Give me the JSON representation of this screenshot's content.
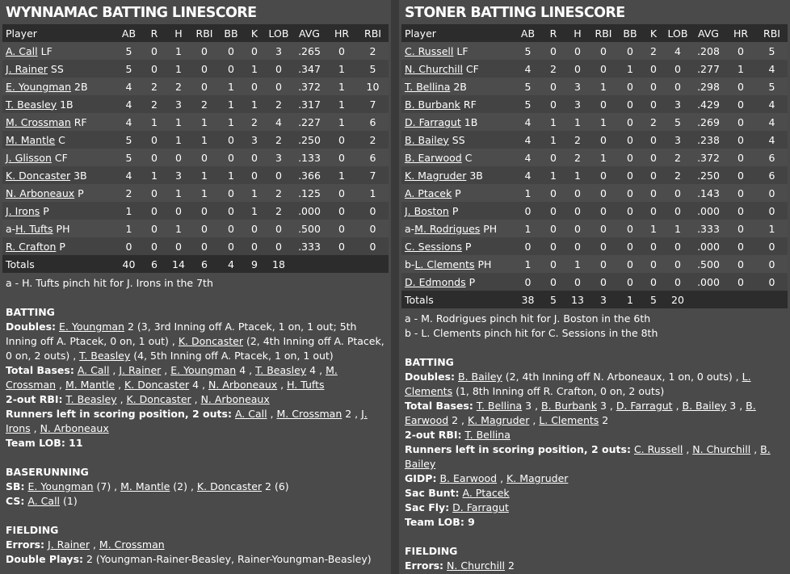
{
  "left": {
    "title": "WYNNAMAC BATTING LINESCORE",
    "columns": [
      "Player",
      "AB",
      "R",
      "H",
      "RBI",
      "BB",
      "K",
      "LOB",
      "AVG",
      "HR",
      "RBI"
    ],
    "rows": [
      {
        "name": "A. Call",
        "pos": "LF",
        "sub": false,
        "stats": [
          "5",
          "0",
          "1",
          "0",
          "0",
          "0",
          "3",
          ".265",
          "0",
          "2"
        ]
      },
      {
        "name": "J. Rainer",
        "pos": "SS",
        "sub": false,
        "stats": [
          "5",
          "0",
          "1",
          "0",
          "0",
          "1",
          "0",
          ".347",
          "1",
          "5"
        ]
      },
      {
        "name": "E. Youngman",
        "pos": "2B",
        "sub": false,
        "stats": [
          "4",
          "2",
          "2",
          "0",
          "1",
          "0",
          "0",
          ".372",
          "1",
          "10"
        ]
      },
      {
        "name": "T. Beasley",
        "pos": "1B",
        "sub": false,
        "stats": [
          "4",
          "2",
          "3",
          "2",
          "1",
          "1",
          "2",
          ".317",
          "1",
          "7"
        ]
      },
      {
        "name": "M. Crossman",
        "pos": "RF",
        "sub": false,
        "stats": [
          "4",
          "1",
          "1",
          "1",
          "1",
          "2",
          "4",
          ".227",
          "1",
          "6"
        ]
      },
      {
        "name": "M. Mantle",
        "pos": "C",
        "sub": false,
        "stats": [
          "5",
          "0",
          "1",
          "1",
          "0",
          "3",
          "2",
          ".250",
          "0",
          "2"
        ]
      },
      {
        "name": "J. Glisson",
        "pos": "CF",
        "sub": false,
        "stats": [
          "5",
          "0",
          "0",
          "0",
          "0",
          "0",
          "3",
          ".133",
          "0",
          "6"
        ]
      },
      {
        "name": "K. Doncaster",
        "pos": "3B",
        "sub": false,
        "stats": [
          "4",
          "1",
          "3",
          "1",
          "1",
          "0",
          "0",
          ".366",
          "1",
          "7"
        ]
      },
      {
        "name": "N. Arboneaux",
        "pos": "P",
        "sub": false,
        "stats": [
          "2",
          "0",
          "1",
          "1",
          "0",
          "1",
          "2",
          ".125",
          "0",
          "1"
        ]
      },
      {
        "name": "J. Irons",
        "pos": "P",
        "sub": true,
        "prefix": "",
        "stats": [
          "1",
          "0",
          "0",
          "0",
          "0",
          "1",
          "2",
          ".000",
          "0",
          "0"
        ]
      },
      {
        "name": "H. Tufts",
        "pos": "PH",
        "sub": true,
        "prefix": "a-",
        "stats": [
          "1",
          "0",
          "1",
          "0",
          "0",
          "0",
          "0",
          ".500",
          "0",
          "0"
        ]
      },
      {
        "name": "R. Crafton",
        "pos": "P",
        "sub": true,
        "prefix": "",
        "stats": [
          "0",
          "0",
          "0",
          "0",
          "0",
          "0",
          "0",
          ".333",
          "0",
          "0"
        ]
      }
    ],
    "totals": {
      "label": "Totals",
      "stats": [
        "40",
        "6",
        "14",
        "6",
        "4",
        "9",
        "18",
        "",
        "",
        ""
      ]
    },
    "footnotes": [
      "a - H. Tufts pinch hit for J. Irons in the 7th"
    ],
    "batting_title": "BATTING",
    "doubles_label": "Doubles:",
    "doubles": [
      {
        "p": "E. Youngman",
        "t": " 2 (3, 3rd Inning off A. Ptacek, 1 on, 1 out; 5th Inning off A. Ptacek, 0 on, 1 out) , "
      },
      {
        "p": "K. Doncaster",
        "t": " (2, 4th Inning off A. Ptacek, 0 on, 2 outs) , "
      },
      {
        "p": "T. Beasley",
        "t": " (4, 5th Inning off A. Ptacek, 1 on, 1 out)"
      }
    ],
    "total_bases_label": "Total Bases:",
    "total_bases": [
      {
        "p": "A. Call",
        "t": " , "
      },
      {
        "p": "J. Rainer",
        "t": " , "
      },
      {
        "p": "E. Youngman",
        "t": " 4 , "
      },
      {
        "p": "T. Beasley",
        "t": " 4 , "
      },
      {
        "p": "M. Crossman",
        "t": " , "
      },
      {
        "p": "M. Mantle",
        "t": " , "
      },
      {
        "p": "K. Doncaster",
        "t": " 4 , "
      },
      {
        "p": "N. Arboneaux",
        "t": " , "
      },
      {
        "p": "H. Tufts",
        "t": ""
      }
    ],
    "two_out_rbi_label": "2-out RBI:",
    "two_out_rbi": [
      {
        "p": "T. Beasley",
        "t": " , "
      },
      {
        "p": "K. Doncaster",
        "t": " , "
      },
      {
        "p": "N. Arboneaux",
        "t": ""
      }
    ],
    "risp_label": "Runners left in scoring position, 2 outs:",
    "risp": [
      {
        "p": "A. Call",
        "t": " , "
      },
      {
        "p": "M. Crossman",
        "t": " 2 , "
      },
      {
        "p": "J. Irons",
        "t": " , "
      },
      {
        "p": "N. Arboneaux",
        "t": ""
      }
    ],
    "team_lob": "Team LOB: 11",
    "baserunning_title": "BASERUNNING",
    "sb_label": "SB:",
    "sb": [
      {
        "p": "E. Youngman",
        "t": " (7) , "
      },
      {
        "p": "M. Mantle",
        "t": " (2) , "
      },
      {
        "p": "K. Doncaster",
        "t": " 2 (6)"
      }
    ],
    "cs_label": "CS:",
    "cs": [
      {
        "p": "A. Call",
        "t": " (1)"
      }
    ],
    "fielding_title": "FIELDING",
    "errors_label": "Errors:",
    "errors": [
      {
        "p": "J. Rainer",
        "t": " , "
      },
      {
        "p": "M. Crossman",
        "t": ""
      }
    ],
    "dp_label": "Double Plays:",
    "dp_text": " 2 (Youngman-Rainer-Beasley, Rainer-Youngman-Beasley)"
  },
  "right": {
    "title": "STONER BATTING LINESCORE",
    "columns": [
      "Player",
      "AB",
      "R",
      "H",
      "RBI",
      "BB",
      "K",
      "LOB",
      "AVG",
      "HR",
      "RBI"
    ],
    "rows": [
      {
        "name": "C. Russell",
        "pos": "LF",
        "sub": false,
        "stats": [
          "5",
          "0",
          "0",
          "0",
          "0",
          "2",
          "4",
          ".208",
          "0",
          "5"
        ]
      },
      {
        "name": "N. Churchill",
        "pos": "CF",
        "sub": false,
        "stats": [
          "4",
          "2",
          "0",
          "0",
          "1",
          "0",
          "0",
          ".277",
          "1",
          "4"
        ]
      },
      {
        "name": "T. Bellina",
        "pos": "2B",
        "sub": false,
        "stats": [
          "5",
          "0",
          "3",
          "1",
          "0",
          "0",
          "0",
          ".298",
          "0",
          "5"
        ]
      },
      {
        "name": "B. Burbank",
        "pos": "RF",
        "sub": false,
        "stats": [
          "5",
          "0",
          "3",
          "0",
          "0",
          "0",
          "3",
          ".429",
          "0",
          "4"
        ]
      },
      {
        "name": "D. Farragut",
        "pos": "1B",
        "sub": false,
        "stats": [
          "4",
          "1",
          "1",
          "1",
          "0",
          "2",
          "5",
          ".269",
          "0",
          "4"
        ]
      },
      {
        "name": "B. Bailey",
        "pos": "SS",
        "sub": false,
        "stats": [
          "4",
          "1",
          "2",
          "0",
          "0",
          "0",
          "3",
          ".238",
          "0",
          "4"
        ]
      },
      {
        "name": "B. Earwood",
        "pos": "C",
        "sub": false,
        "stats": [
          "4",
          "0",
          "2",
          "1",
          "0",
          "0",
          "2",
          ".372",
          "0",
          "6"
        ]
      },
      {
        "name": "K. Magruder",
        "pos": "3B",
        "sub": false,
        "stats": [
          "4",
          "1",
          "1",
          "0",
          "0",
          "0",
          "2",
          ".250",
          "0",
          "6"
        ]
      },
      {
        "name": "A. Ptacek",
        "pos": "P",
        "sub": false,
        "stats": [
          "1",
          "0",
          "0",
          "0",
          "0",
          "0",
          "0",
          ".143",
          "0",
          "0"
        ]
      },
      {
        "name": "J. Boston",
        "pos": "P",
        "sub": true,
        "prefix": "",
        "stats": [
          "0",
          "0",
          "0",
          "0",
          "0",
          "0",
          "0",
          ".000",
          "0",
          "0"
        ]
      },
      {
        "name": "M. Rodrigues",
        "pos": "PH",
        "sub": true,
        "prefix": "a-",
        "stats": [
          "1",
          "0",
          "0",
          "0",
          "0",
          "1",
          "1",
          ".333",
          "0",
          "1"
        ]
      },
      {
        "name": "C. Sessions",
        "pos": "P",
        "sub": true,
        "prefix": "",
        "stats": [
          "0",
          "0",
          "0",
          "0",
          "0",
          "0",
          "0",
          ".000",
          "0",
          "0"
        ]
      },
      {
        "name": "L. Clements",
        "pos": "PH",
        "sub": true,
        "prefix": "b-",
        "stats": [
          "1",
          "0",
          "1",
          "0",
          "0",
          "0",
          "0",
          ".500",
          "0",
          "0"
        ]
      },
      {
        "name": "D. Edmonds",
        "pos": "P",
        "sub": true,
        "prefix": "",
        "stats": [
          "0",
          "0",
          "0",
          "0",
          "0",
          "0",
          "0",
          ".000",
          "0",
          "0"
        ]
      }
    ],
    "totals": {
      "label": "Totals",
      "stats": [
        "38",
        "5",
        "13",
        "3",
        "1",
        "5",
        "20",
        "",
        "",
        ""
      ]
    },
    "footnotes": [
      "a - M. Rodrigues pinch hit for J. Boston in the 6th",
      "b - L. Clements pinch hit for C. Sessions in the 8th"
    ],
    "batting_title": "BATTING",
    "doubles_label": "Doubles:",
    "doubles": [
      {
        "p": "B. Bailey",
        "t": " (2, 4th Inning off N. Arboneaux, 1 on, 0 outs) , "
      },
      {
        "p": "L. Clements",
        "t": " (1, 8th Inning off R. Crafton, 0 on, 2 outs)"
      }
    ],
    "total_bases_label": "Total Bases:",
    "total_bases": [
      {
        "p": "T. Bellina",
        "t": " 3 , "
      },
      {
        "p": "B. Burbank",
        "t": " 3 , "
      },
      {
        "p": "D. Farragut",
        "t": " , "
      },
      {
        "p": "B. Bailey",
        "t": " 3 , "
      },
      {
        "p": "B. Earwood",
        "t": " 2 , "
      },
      {
        "p": "K. Magruder",
        "t": " , "
      },
      {
        "p": "L. Clements",
        "t": " 2"
      }
    ],
    "two_out_rbi_label": "2-out RBI:",
    "two_out_rbi": [
      {
        "p": "T. Bellina",
        "t": ""
      }
    ],
    "risp_label": "Runners left in scoring position, 2 outs:",
    "risp": [
      {
        "p": "C. Russell",
        "t": " , "
      },
      {
        "p": "N. Churchill",
        "t": " , "
      },
      {
        "p": "B. Bailey",
        "t": ""
      }
    ],
    "gidp_label": "GIDP:",
    "gidp": [
      {
        "p": "B. Earwood",
        "t": " , "
      },
      {
        "p": "K. Magruder",
        "t": ""
      }
    ],
    "sac_bunt_label": "Sac Bunt:",
    "sac_bunt": [
      {
        "p": "A. Ptacek",
        "t": ""
      }
    ],
    "sac_fly_label": "Sac Fly:",
    "sac_fly": [
      {
        "p": "D. Farragut",
        "t": ""
      }
    ],
    "team_lob": "Team LOB: 9",
    "fielding_title": "FIELDING",
    "errors_label": "Errors:",
    "errors": [
      {
        "p": "N. Churchill",
        "t": " 2"
      }
    ]
  }
}
